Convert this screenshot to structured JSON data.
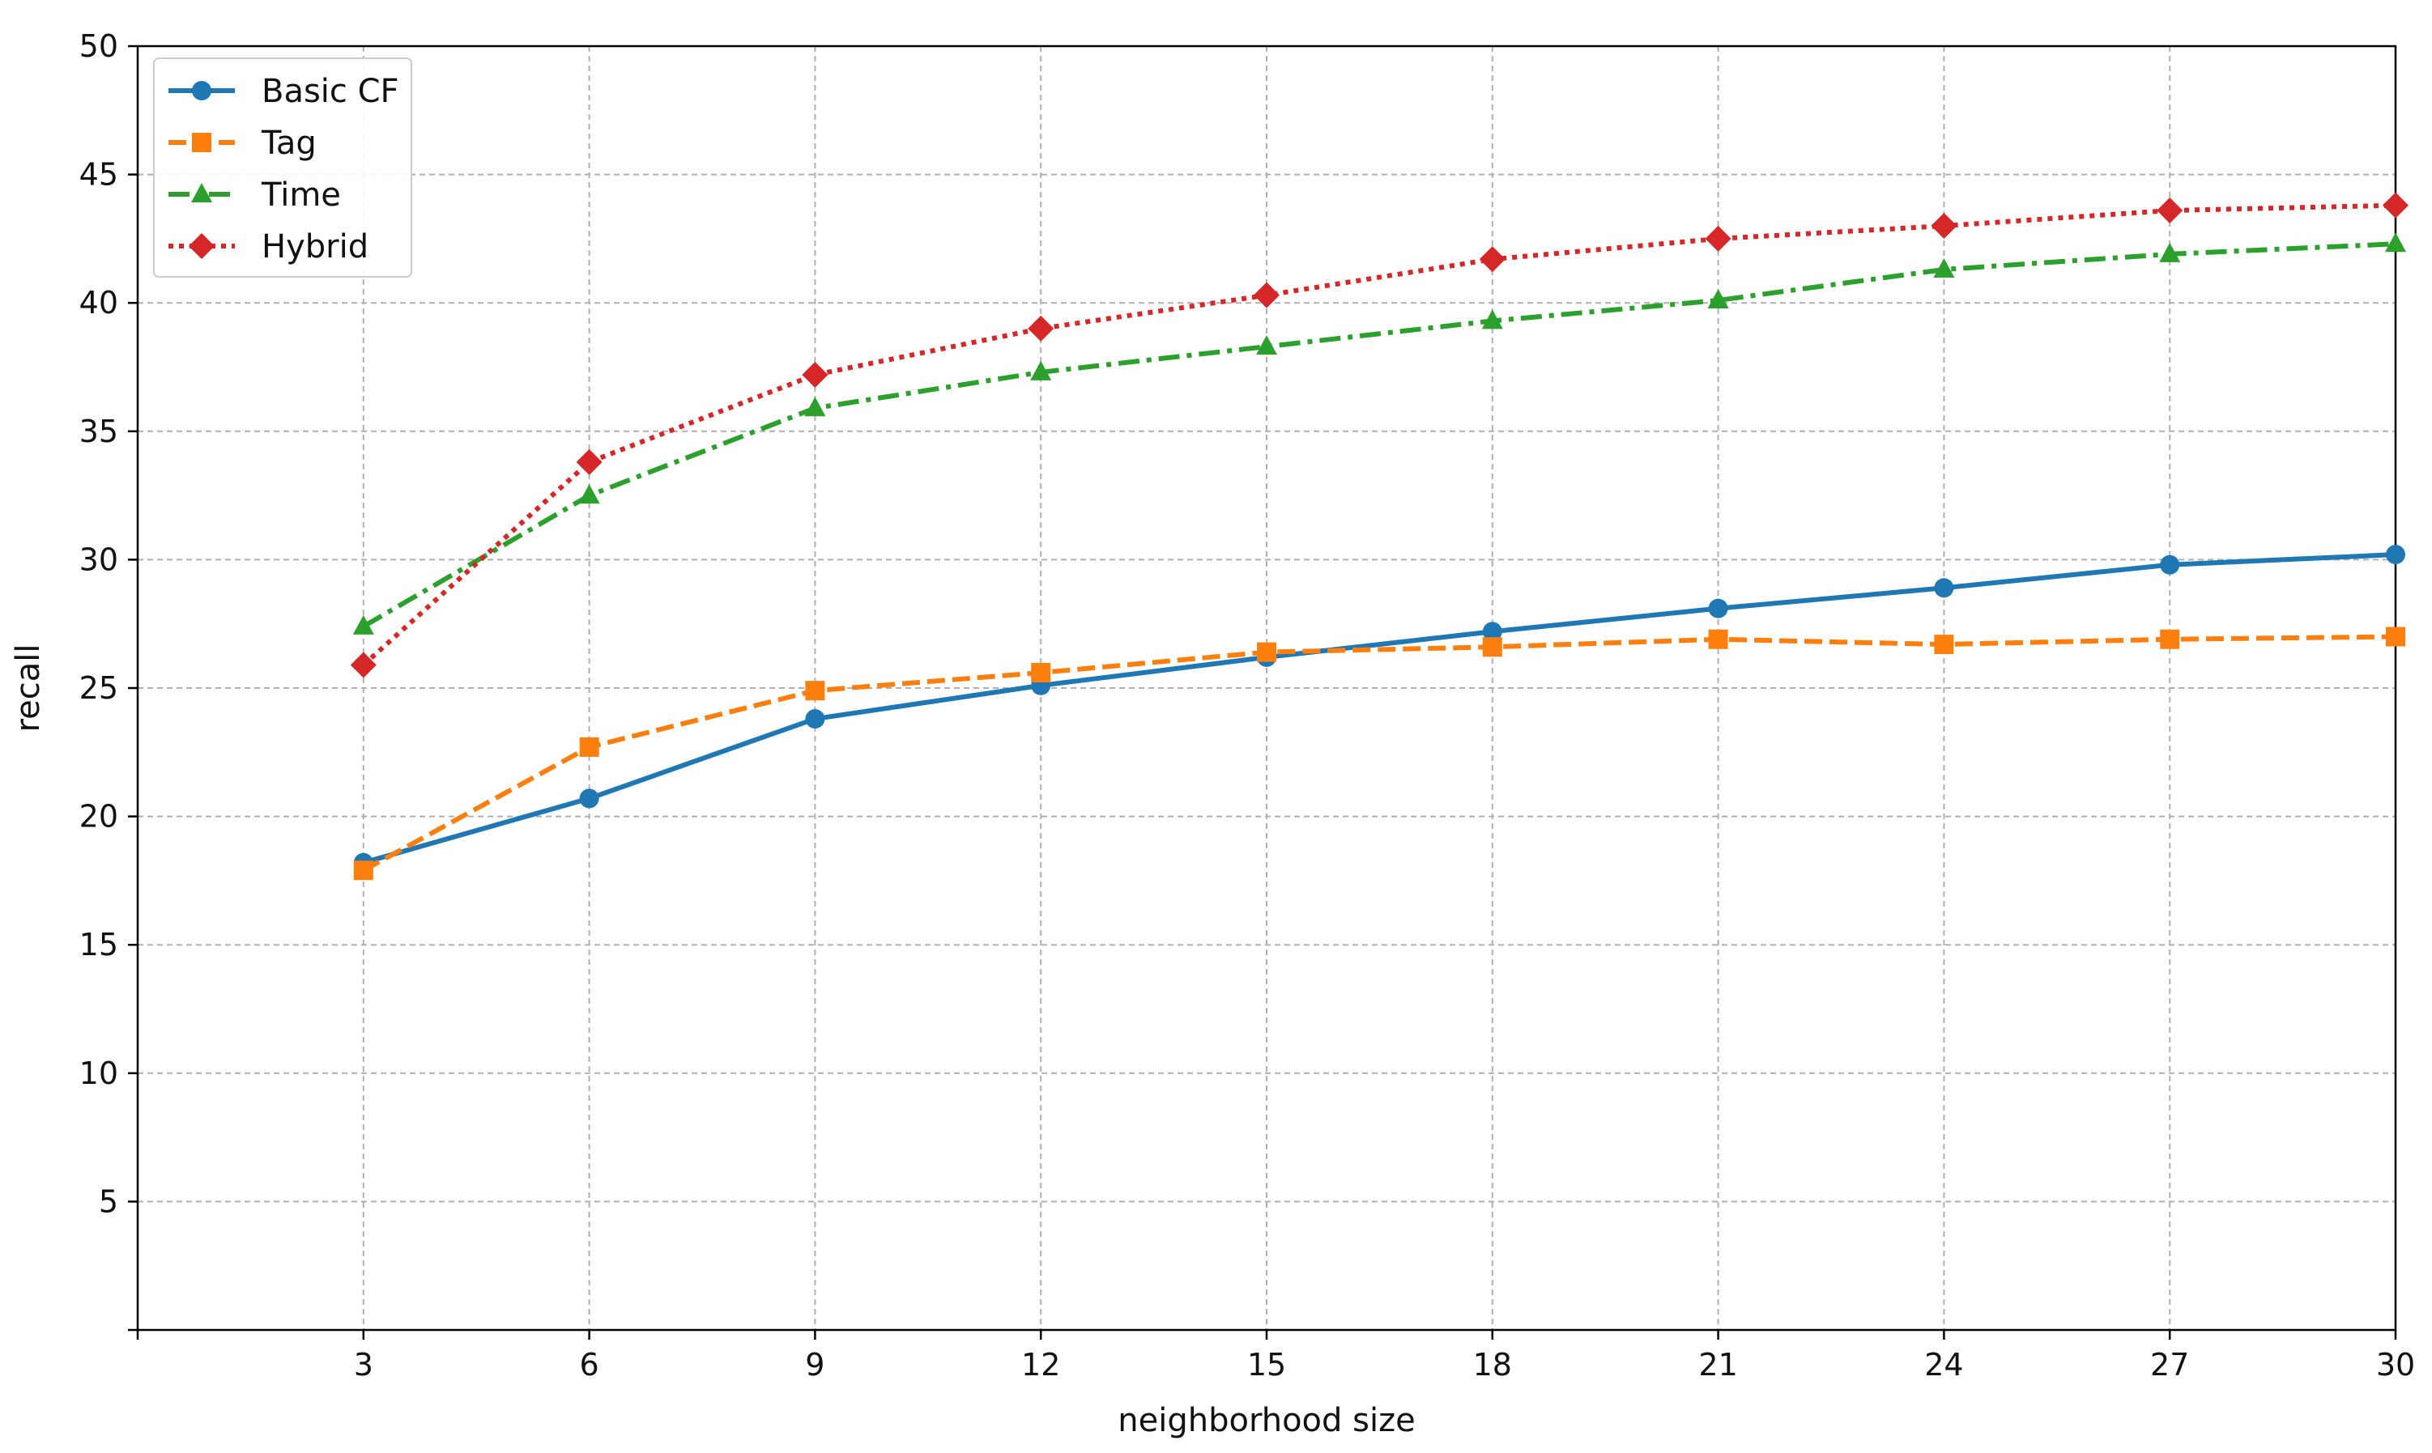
{
  "chart_data": {
    "type": "line",
    "title": "",
    "xlabel": "neighborhood size",
    "ylabel": "recall",
    "xlim": [
      0,
      30
    ],
    "ylim": [
      0,
      50
    ],
    "x_ticks": [
      3,
      6,
      9,
      12,
      15,
      18,
      21,
      24,
      27,
      30
    ],
    "y_ticks": [
      5,
      10,
      15,
      20,
      25,
      30,
      35,
      40,
      45,
      50
    ],
    "grid": true,
    "legend_position": "top-left",
    "x": [
      3,
      6,
      9,
      12,
      15,
      18,
      21,
      24,
      27,
      30
    ],
    "series": [
      {
        "name": "Basic CF",
        "values": [
          18.2,
          20.7,
          23.8,
          25.1,
          26.2,
          27.2,
          28.1,
          28.9,
          29.8,
          30.2
        ],
        "color": "#1f77b4",
        "marker": "circle",
        "dash": "solid"
      },
      {
        "name": "Tag",
        "values": [
          17.9,
          22.7,
          24.9,
          25.6,
          26.4,
          26.6,
          26.9,
          26.7,
          26.9,
          27.0
        ],
        "color": "#ff7f0e",
        "marker": "square",
        "dash": "dashed"
      },
      {
        "name": "Time",
        "values": [
          27.4,
          32.5,
          35.9,
          37.3,
          38.3,
          39.3,
          40.1,
          41.3,
          41.9,
          42.3
        ],
        "color": "#2ca02c",
        "marker": "triangle",
        "dash": "dashdot"
      },
      {
        "name": "Hybrid",
        "values": [
          25.9,
          33.8,
          37.2,
          39.0,
          40.3,
          41.7,
          42.5,
          43.0,
          43.6,
          43.8
        ],
        "color": "#d62728",
        "marker": "diamond",
        "dash": "dotted"
      }
    ]
  }
}
